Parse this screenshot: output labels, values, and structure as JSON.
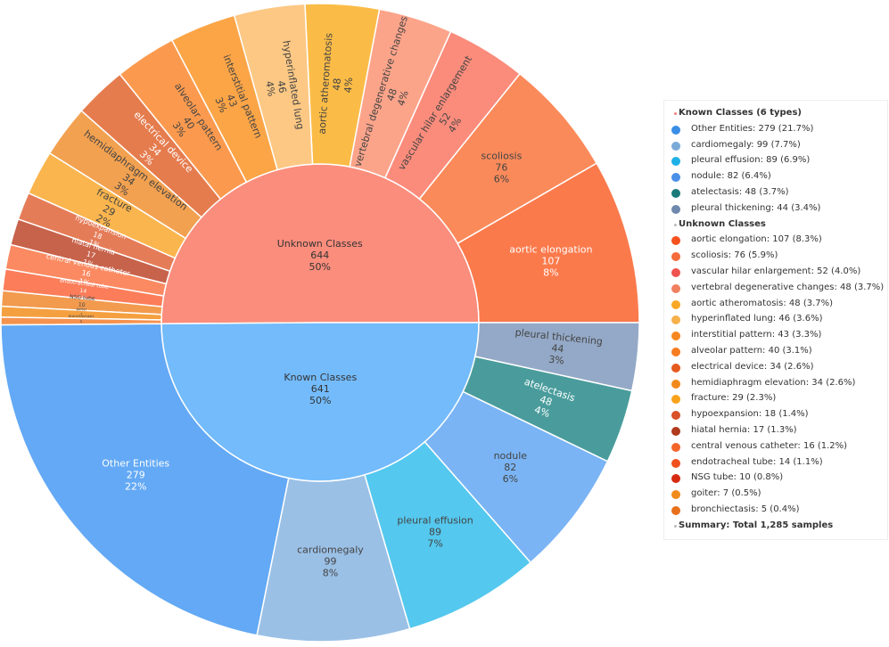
{
  "colors": {
    "background": "#ffffff",
    "border": "#ffffff"
  },
  "chart_data": {
    "type": "sunburst",
    "title": "",
    "total": 1285,
    "inner": [
      {
        "name": "Unknown Classes",
        "value": 644,
        "pct": "50%",
        "color": "#fb8d7c"
      },
      {
        "name": "Known Classes",
        "value": 641,
        "pct": "50%",
        "color": "#73bbfb"
      }
    ],
    "outer": [
      {
        "name": "pleural thickening",
        "value": 44,
        "pct": "3%",
        "parent": "Known Classes",
        "color": "#94a9c7",
        "dark": false
      },
      {
        "name": "atelectasis",
        "value": 48,
        "pct": "4%",
        "parent": "Known Classes",
        "color": "#4a9c9c",
        "dark": true
      },
      {
        "name": "nodule",
        "value": 82,
        "pct": "6%",
        "parent": "Known Classes",
        "color": "#7ab4f5",
        "dark": false
      },
      {
        "name": "pleural effusion",
        "value": 89,
        "pct": "7%",
        "parent": "Known Classes",
        "color": "#54c8ee",
        "dark": false
      },
      {
        "name": "cardiomegaly",
        "value": 99,
        "pct": "8%",
        "parent": "Known Classes",
        "color": "#9bc0e6",
        "dark": false
      },
      {
        "name": "Other Entities",
        "value": 279,
        "pct": "22%",
        "parent": "Known Classes",
        "color": "#63a9f5",
        "dark": true
      },
      {
        "name": "bronchiectasis",
        "value": 5,
        "pct": "0%",
        "parent": "Unknown Classes",
        "color": "#f5924e",
        "dark": false
      },
      {
        "name": "goiter",
        "value": 7,
        "pct": "1%",
        "parent": "Unknown Classes",
        "color": "#f5a040",
        "dark": false
      },
      {
        "name": "NSG tube",
        "value": 10,
        "pct": "1%",
        "parent": "Unknown Classes",
        "color": "#f29a4e",
        "dark": false
      },
      {
        "name": "endotracheal tube",
        "value": 14,
        "pct": "1%",
        "parent": "Unknown Classes",
        "color": "#fb7d59",
        "dark": true
      },
      {
        "name": "central venous catheter",
        "value": 16,
        "pct": "1%",
        "parent": "Unknown Classes",
        "color": "#fb8a62",
        "dark": true
      },
      {
        "name": "hiatal hernia",
        "value": 17,
        "pct": "1%",
        "parent": "Unknown Classes",
        "color": "#c7624b",
        "dark": true
      },
      {
        "name": "hypoexpansion",
        "value": 18,
        "pct": "1%",
        "parent": "Unknown Classes",
        "color": "#e57c58",
        "dark": true
      },
      {
        "name": "fracture",
        "value": 29,
        "pct": "2%",
        "parent": "Unknown Classes",
        "color": "#fbb54e",
        "dark": false
      },
      {
        "name": "hemidiaphragm elevation",
        "value": 34,
        "pct": "3%",
        "parent": "Unknown Classes",
        "color": "#f2a150",
        "dark": false
      },
      {
        "name": "electrical device",
        "value": 34,
        "pct": "3%",
        "parent": "Unknown Classes",
        "color": "#e57c4e",
        "dark": true
      },
      {
        "name": "alveolar pattern",
        "value": 40,
        "pct": "3%",
        "parent": "Unknown Classes",
        "color": "#fb9a4e",
        "dark": false
      },
      {
        "name": "interstitial pattern",
        "value": 43,
        "pct": "3%",
        "parent": "Unknown Classes",
        "color": "#fba547",
        "dark": false
      },
      {
        "name": "hyperinflated lung",
        "value": 46,
        "pct": "4%",
        "parent": "Unknown Classes",
        "color": "#fcc884",
        "dark": false
      },
      {
        "name": "aortic atheromatosis",
        "value": 48,
        "pct": "4%",
        "parent": "Unknown Classes",
        "color": "#fbbc47",
        "dark": false
      },
      {
        "name": "vertebral degenerative changes",
        "value": 48,
        "pct": "4%",
        "parent": "Unknown Classes",
        "color": "#fca48a",
        "dark": false
      },
      {
        "name": "vascular hilar enlargement",
        "value": 52,
        "pct": "4%",
        "parent": "Unknown Classes",
        "color": "#fb8c7c",
        "dark": false
      },
      {
        "name": "scoliosis",
        "value": 76,
        "pct": "6%",
        "parent": "Unknown Classes",
        "color": "#fb8a5a",
        "dark": false
      },
      {
        "name": "aortic elongation",
        "value": 107,
        "pct": "8%",
        "parent": "Unknown Classes",
        "color": "#fb7a4c",
        "dark": true
      }
    ],
    "legend": [
      {
        "text": "Known Classes (6 types)",
        "type": "header",
        "color": "#f08080"
      },
      {
        "text": "Other Entities: 279 (21.7%)",
        "type": "item",
        "color": "#3a8ee6"
      },
      {
        "text": "cardiomegaly: 99 (7.7%)",
        "type": "item",
        "color": "#7aaad8"
      },
      {
        "text": "pleural effusion: 89 (6.9%)",
        "type": "item",
        "color": "#1fb0e6"
      },
      {
        "text": "nodule: 82 (6.4%)",
        "type": "item",
        "color": "#4a90e8"
      },
      {
        "text": "atelectasis: 48 (3.7%)",
        "type": "item",
        "color": "#1a7a7a"
      },
      {
        "text": "pleural thickening: 44 (3.4%)",
        "type": "item",
        "color": "#6f88ad"
      },
      {
        "text": "Unknown Classes",
        "type": "header",
        "color": "#bbbbbb"
      },
      {
        "text": "aortic elongation: 107 (8.3%)",
        "type": "item",
        "color": "#f4511e"
      },
      {
        "text": "scoliosis: 76 (5.9%)",
        "type": "item",
        "color": "#f56b3a"
      },
      {
        "text": "vascular hilar enlargement: 52 (4.0%)",
        "type": "item",
        "color": "#ef5350"
      },
      {
        "text": "vertebral degenerative changes: 48 (3.7%)",
        "type": "item",
        "color": "#f08060"
      },
      {
        "text": "aortic atheromatosis: 48 (3.7%)",
        "type": "item",
        "color": "#f9a825"
      },
      {
        "text": "hyperinflated lung: 46 (3.6%)",
        "type": "item",
        "color": "#f7b04a"
      },
      {
        "text": "interstitial pattern: 43 (3.3%)",
        "type": "item",
        "color": "#f6871f"
      },
      {
        "text": "alveolar pattern: 40 (3.1%)",
        "type": "item",
        "color": "#f57c1f"
      },
      {
        "text": "electrical device: 34 (2.6%)",
        "type": "item",
        "color": "#e65a1e"
      },
      {
        "text": "hemidiaphragm elevation: 34 (2.6%)",
        "type": "item",
        "color": "#f28a1a"
      },
      {
        "text": "fracture: 29 (2.3%)",
        "type": "item",
        "color": "#f9a21a"
      },
      {
        "text": "hypoexpansion: 18 (1.4%)",
        "type": "item",
        "color": "#d9502a"
      },
      {
        "text": "hiatal hernia: 17 (1.3%)",
        "type": "item",
        "color": "#b03a1e"
      },
      {
        "text": "central venous catheter: 16 (1.2%)",
        "type": "item",
        "color": "#f4652a"
      },
      {
        "text": "endotracheal tube: 14 (1.1%)",
        "type": "item",
        "color": "#f0501e"
      },
      {
        "text": "NSG tube: 10 (0.8%)",
        "type": "item",
        "color": "#d62a10"
      },
      {
        "text": "goiter: 7 (0.5%)",
        "type": "item",
        "color": "#f08a1a"
      },
      {
        "text": "bronchiectasis: 5 (0.4%)",
        "type": "item",
        "color": "#e8701a"
      },
      {
        "text": "Summary: Total 1,285 samples",
        "type": "header",
        "color": "#bbbbbb"
      }
    ]
  }
}
